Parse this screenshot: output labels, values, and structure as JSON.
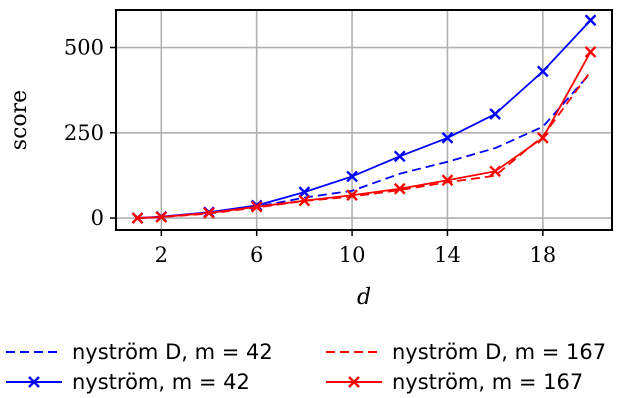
{
  "chart_data": {
    "type": "line",
    "xlabel": "d",
    "ylabel": "score",
    "xlim": [
      0.1,
      20.9
    ],
    "ylim": [
      -35,
      610
    ],
    "xticks": [
      2,
      6,
      10,
      14,
      18
    ],
    "yticks": [
      0,
      250,
      500
    ],
    "grid": true,
    "legend_position": "below",
    "series": [
      {
        "name": "nyström D, m = 42",
        "color": "#0000ff",
        "style": "dashed",
        "marker": "none",
        "x": [
          1,
          2,
          4,
          6,
          8,
          10,
          12,
          14,
          16,
          18,
          20
        ],
        "y": [
          0,
          3,
          14,
          33,
          60,
          80,
          130,
          165,
          205,
          268,
          425
        ]
      },
      {
        "name": "nyström, m = 42",
        "color": "#0000ff",
        "style": "solid",
        "marker": "x",
        "x": [
          1,
          2,
          4,
          6,
          8,
          10,
          12,
          14,
          16,
          18,
          20
        ],
        "y": [
          0,
          4,
          17,
          37,
          76,
          122,
          181,
          235,
          305,
          430,
          580
        ]
      },
      {
        "name": "nyström D, m = 167",
        "color": "#ff0000",
        "style": "dashed",
        "marker": "none",
        "x": [
          1,
          2,
          4,
          6,
          8,
          10,
          12,
          14,
          16,
          18,
          20
        ],
        "y": [
          0,
          3,
          13,
          31,
          50,
          63,
          82,
          105,
          124,
          240,
          430
        ]
      },
      {
        "name": "nyström, m = 167",
        "color": "#ff0000",
        "style": "solid",
        "marker": "x",
        "x": [
          1,
          2,
          4,
          6,
          8,
          10,
          12,
          14,
          16,
          18,
          20
        ],
        "y": [
          0,
          3,
          15,
          33,
          51,
          67,
          86,
          111,
          137,
          235,
          487
        ]
      }
    ]
  }
}
